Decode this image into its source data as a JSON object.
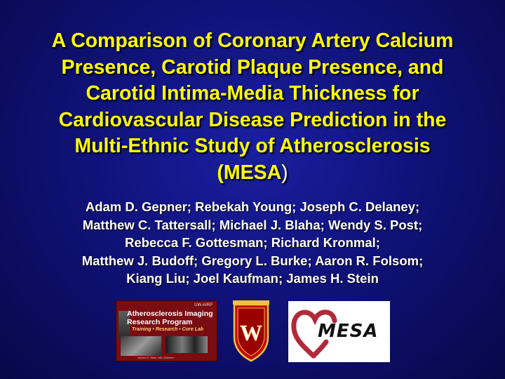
{
  "title": {
    "lines": [
      "A Comparison of Coronary Artery Calcium",
      "Presence, Carotid Plaque Presence, and",
      "Carotid Intima-Media Thickness for",
      "Cardiovascular Disease Prediction in the",
      "Multi-Ethnic Study of Atherosclerosis"
    ],
    "last_line_open": "(",
    "last_line_bold": "MESA",
    "last_line_close": ")"
  },
  "authors": {
    "lines": [
      "Adam D. Gepner; Rebekah Young; Joseph C. Delaney;",
      "Matthew C. Tattersall;  Michael J. Blaha; Wendy S. Post;",
      "Rebecca F. Gottesman; Richard Kronmal;",
      "Matthew J. Budoff; Gregory L. Burke; Aaron R. Folsom;",
      "Kiang Liu; Joel Kaufman; James H. Stein"
    ]
  },
  "logos": {
    "aim": {
      "org": "UW-AIRP",
      "heading_1": "Atherosclerosis Imaging",
      "heading_2": "Research Program",
      "tagline": "Training • Research • Core Lab",
      "director": "James H. Stein, MD, Director"
    },
    "crest": {
      "letter": "W"
    },
    "mesa": {
      "word": "MESA"
    }
  },
  "colors": {
    "title": "#ffff00",
    "text": "#ffffff",
    "background": "#10127a",
    "crest_red": "#c5050c",
    "heart_red": "#b22a3a"
  }
}
